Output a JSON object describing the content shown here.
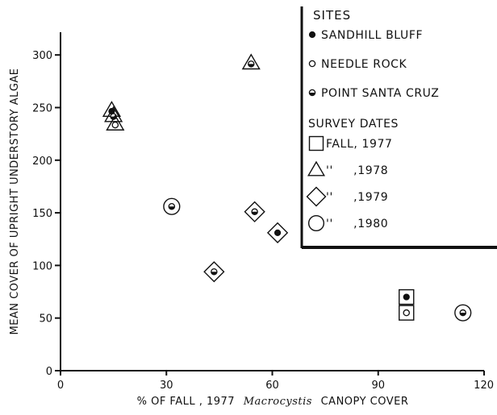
{
  "chart_data": {
    "type": "scatter",
    "xlabel_prefix": "% OF FALL , 1977",
    "xlabel_italic": "Macrocystis",
    "xlabel_suffix": "CANOPY COVER",
    "ylabel": "MEAN COVER OF UPRIGHT UNDERSTORY ALGAE",
    "xlim": [
      0,
      120
    ],
    "ylim": [
      0,
      330
    ],
    "x_ticks": [
      "0",
      "30",
      "60",
      "90",
      "120"
    ],
    "y_ticks": [
      "0",
      "50",
      "100",
      "150",
      "200",
      "250",
      "300"
    ],
    "grid": false,
    "legend": {
      "placement": "top-right",
      "sites_title": "SITES",
      "sites": [
        {
          "label": "SANDHILL BLUFF",
          "fill": "solid"
        },
        {
          "label": "NEEDLE ROCK",
          "fill": "open"
        },
        {
          "label": "POINT SANTA CRUZ",
          "fill": "half"
        }
      ],
      "dates_title": "SURVEY DATES",
      "dates": [
        {
          "shape": "square",
          "label": "FALL, 1977"
        },
        {
          "shape": "triangle",
          "label": "''     ,1978"
        },
        {
          "shape": "diamond",
          "label": "''     ,1979"
        },
        {
          "shape": "circle",
          "label": "''     ,1980"
        }
      ]
    },
    "points": [
      {
        "site": "solid",
        "shape": "triangle",
        "x": 14.5,
        "y": 248
      },
      {
        "site": "half",
        "shape": "triangle",
        "x": 15,
        "y": 243
      },
      {
        "site": "open",
        "shape": "triangle",
        "x": 15.5,
        "y": 235
      },
      {
        "site": "half",
        "shape": "triangle",
        "x": 54,
        "y": 293
      },
      {
        "site": "half",
        "shape": "circle",
        "x": 31.5,
        "y": 156
      },
      {
        "site": "half",
        "shape": "diamond",
        "x": 55,
        "y": 151
      },
      {
        "site": "solid",
        "shape": "diamond",
        "x": 61.5,
        "y": 131
      },
      {
        "site": "half",
        "shape": "diamond",
        "x": 43.5,
        "y": 94
      },
      {
        "site": "solid",
        "shape": "square",
        "x": 98,
        "y": 70
      },
      {
        "site": "open",
        "shape": "square",
        "x": 98,
        "y": 55
      },
      {
        "site": "half",
        "shape": "circle",
        "x": 114,
        "y": 55
      }
    ]
  }
}
